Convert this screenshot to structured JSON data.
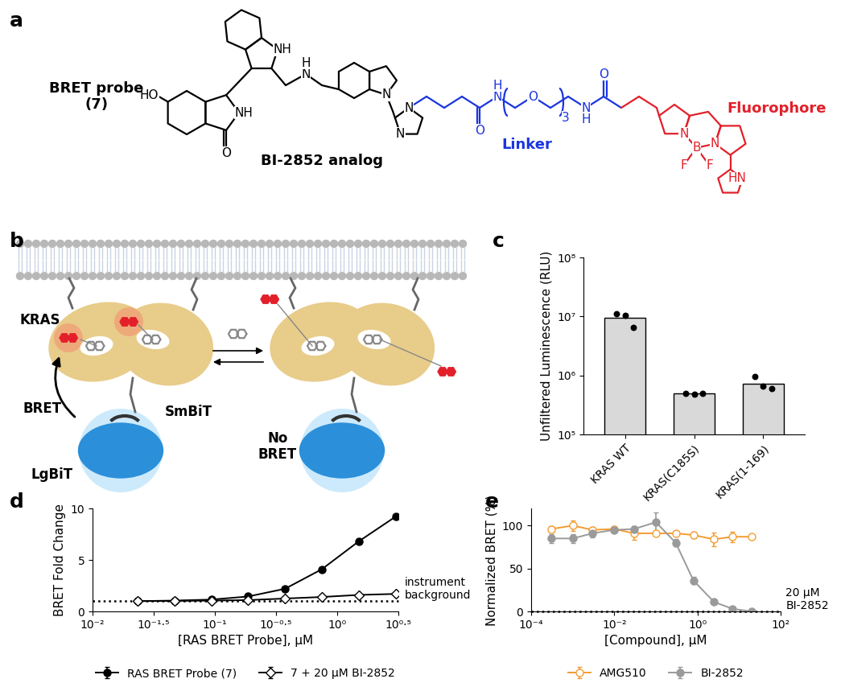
{
  "structure": {
    "panel_label": "a",
    "title": "BRET probe\n(7)",
    "groups": [
      {
        "text": "BI-2852 analog",
        "color": "#000000"
      },
      {
        "text": "Linker",
        "color": "#1a35e0"
      },
      {
        "text": "Fluorophore",
        "color": "#e3202a"
      }
    ],
    "atom_labels": [
      "HO",
      "NH",
      "O",
      "NH",
      "N",
      "H",
      "N",
      "N",
      "N",
      "O",
      "N",
      "H",
      "O",
      "3",
      "N",
      "H",
      "O",
      "N",
      "N",
      "B",
      "F",
      "F",
      "HN"
    ]
  },
  "diagram": {
    "panel_label": "b",
    "labels": {
      "kras": "KRAS",
      "bret": "BRET",
      "smbit": "SmBiT",
      "lgbit": "LgBiT",
      "no_bret": "No\nBRET"
    }
  },
  "chart_data": [
    {
      "panel_label": "c",
      "type": "bar",
      "categories": [
        "KRAS WT",
        "KRAS(C185S)",
        "KRAS(1-169)"
      ],
      "values": [
        9500000,
        490000,
        720000
      ],
      "points": [
        [
          11000000,
          10500000,
          6500000
        ],
        [
          500000,
          480000,
          490000
        ],
        [
          950000,
          650000,
          600000
        ]
      ],
      "color": "#d9d9d9",
      "y_label": "Unfiltered Luminescence (RLU)",
      "log": "y",
      "ylim": [
        100000,
        100000000
      ],
      "yticks": [
        {
          "value": 100000,
          "label": "10⁵"
        },
        {
          "value": 1000000,
          "label": "10⁶"
        },
        {
          "value": 10000000,
          "label": "10⁷"
        },
        {
          "value": 100000000,
          "label": "10⁸"
        }
      ]
    },
    {
      "panel_label": "d",
      "type": "line",
      "x": [
        0.0234,
        0.0469,
        0.094,
        0.1875,
        0.375,
        0.75,
        1.5,
        3.0
      ],
      "series": [
        {
          "name": "RAS BRET Probe (7)",
          "color": "#000000",
          "marker": "circle",
          "values": [
            1.0,
            1.05,
            1.15,
            1.45,
            2.2,
            4.1,
            6.8,
            9.2
          ],
          "errors": [
            0.02,
            0.02,
            0.03,
            0.04,
            0.06,
            0.08,
            0.2,
            0.15
          ]
        },
        {
          "name": "7 + 20 µM BI-2852",
          "color": "#000000",
          "marker": "open diamond",
          "values": [
            1.0,
            1.02,
            1.05,
            1.1,
            1.25,
            1.4,
            1.6,
            1.7
          ],
          "errors": [
            0.02,
            0.02,
            0.02,
            0.02,
            0.03,
            0.03,
            0.04,
            0.04
          ]
        }
      ],
      "x_label": "[RAS BRET Probe], µM",
      "y_label": "BRET Fold Change",
      "log": "x",
      "xlim": [
        0.01,
        3.16228
      ],
      "xticks": [
        {
          "value": 0.01,
          "label": "10⁻²"
        },
        {
          "value": 0.0316228,
          "label": "10⁻¹·⁵"
        },
        {
          "value": 0.1,
          "label": "10⁻¹"
        },
        {
          "value": 0.316228,
          "label": "10⁻⁰·⁵"
        },
        {
          "value": 1,
          "label": "10⁰"
        },
        {
          "value": 3.16228,
          "label": "10⁰·⁵"
        }
      ],
      "ylim": [
        0,
        10
      ],
      "yticks": [
        0,
        5,
        10
      ],
      "reference_line": {
        "value": 1,
        "label": "instrument\nbackground"
      },
      "legend": "upper center"
    },
    {
      "panel_label": "e",
      "type": "line",
      "x": [
        0.0003,
        0.001,
        0.003,
        0.01,
        0.03,
        0.1,
        0.3,
        0.8,
        2.5,
        7,
        20
      ],
      "series": [
        {
          "name": "AMG510",
          "color": "#f39c32",
          "marker": "open circle",
          "values": [
            96,
            100,
            95,
            96,
            91,
            91,
            91,
            89,
            84,
            87,
            87
          ],
          "errors": [
            3,
            6,
            3,
            3,
            8,
            3,
            3,
            4,
            8,
            6,
            2
          ]
        },
        {
          "name": "BI-2852",
          "color": "#9a9a9a",
          "marker": "circle",
          "values": [
            85,
            85,
            91,
            95,
            96,
            104,
            80,
            36,
            11,
            3,
            0
          ],
          "errors": [
            5,
            5,
            5,
            3,
            3,
            11,
            4,
            4,
            2,
            1,
            1
          ]
        }
      ],
      "x_label": "[Compound], µM",
      "y_label": "Normalized BRET (%)",
      "log": "x",
      "xlim": [
        0.0001,
        100
      ],
      "xticks": [
        {
          "value": 0.0001,
          "label": "10⁻⁴"
        },
        {
          "value": 0.01,
          "label": "10⁻²"
        },
        {
          "value": 1,
          "label": "10⁰"
        },
        {
          "value": 100,
          "label": "10²"
        }
      ],
      "ylim": [
        0,
        120
      ],
      "yticks": [
        0,
        50,
        100
      ],
      "reference_line": {
        "value": 0,
        "label": "20 µM\nBI-2852"
      },
      "legend": "upper center"
    }
  ]
}
